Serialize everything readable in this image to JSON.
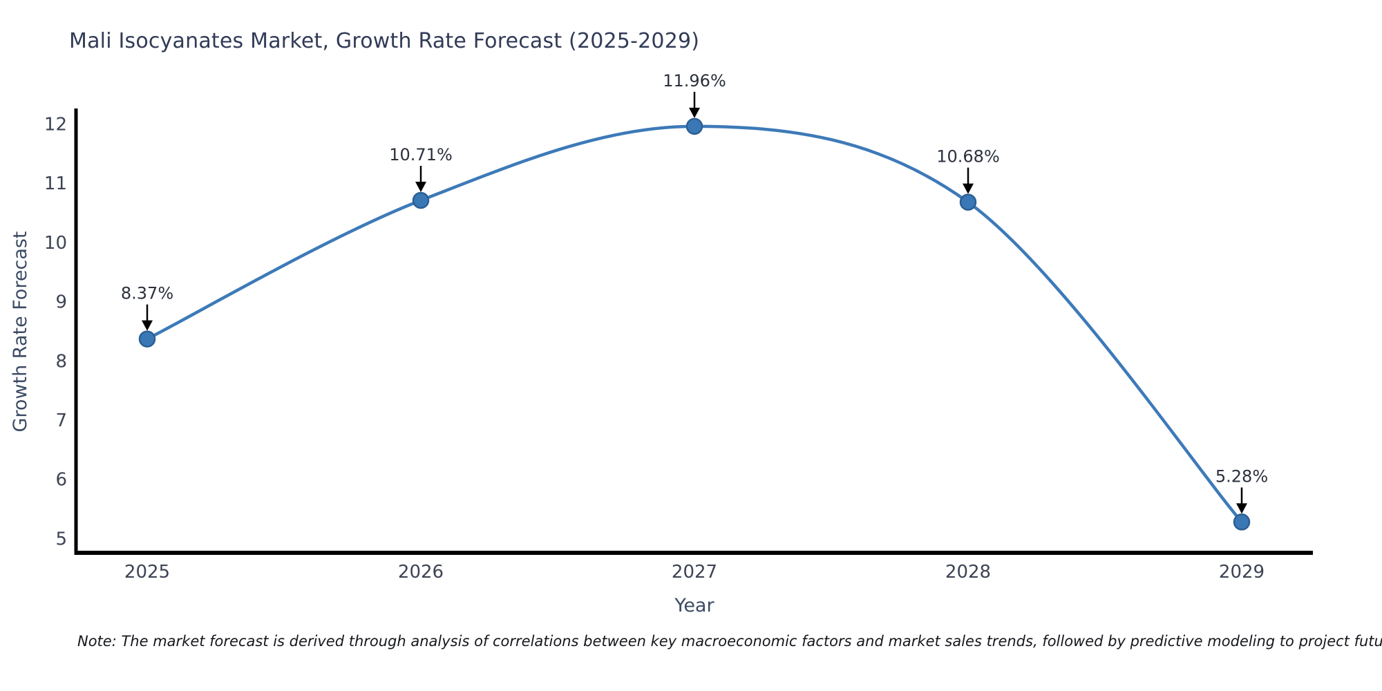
{
  "title": "Mali Isocyanates Market, Growth Rate Forecast (2025-2029)",
  "note": "Note: The market forecast is derived through analysis of correlations between key macroeconomic factors and market sales trends, followed by predictive modeling to project future sales",
  "chart_data": {
    "type": "line",
    "title": "Mali Isocyanates Market, Growth Rate Forecast (2025-2029)",
    "xlabel": "Year",
    "ylabel": "Growth Rate Forecast",
    "categories": [
      "2025",
      "2026",
      "2027",
      "2028",
      "2029"
    ],
    "series": [
      {
        "name": "Growth Rate Forecast",
        "values": [
          8.37,
          10.71,
          11.96,
          10.68,
          5.28
        ]
      }
    ],
    "point_labels": [
      "8.37%",
      "10.71%",
      "11.96%",
      "10.68%",
      "5.28%"
    ],
    "y_ticks": [
      5,
      6,
      7,
      8,
      9,
      10,
      11,
      12
    ],
    "ylim": [
      4.76,
      12.46
    ],
    "grid": false,
    "legend_position": "none",
    "smooth": true,
    "colors": {
      "line": "#3d7ab8",
      "marker_fill": "#3a78b5",
      "marker_edge": "#2b5f94",
      "axis": "#000000",
      "annotation_arrow": "#000000",
      "annotation_text": "#2b303c",
      "tick_text": "#3d4354",
      "axis_title_text": "#3b4a63",
      "title_text": "#313b57",
      "background": "#ffffff"
    }
  }
}
